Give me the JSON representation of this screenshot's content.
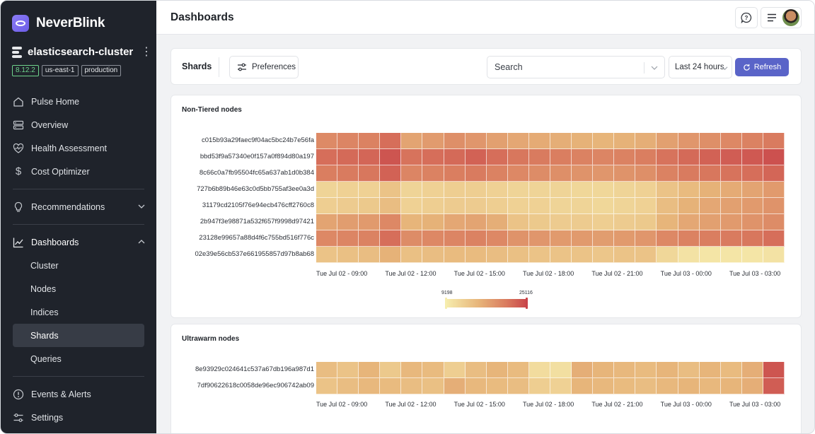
{
  "brand": {
    "name": "NeverBlink"
  },
  "cluster": {
    "name": "elasticsearch-cluster",
    "badges": [
      "8.12.2",
      "us-east-1",
      "production"
    ]
  },
  "nav": {
    "pulse_home": "Pulse Home",
    "overview": "Overview",
    "health_assessment": "Health Assessment",
    "cost_optimizer": "Cost Optimizer",
    "recommendations": "Recommendations",
    "dashboards": "Dashboards",
    "dashboards_sub": [
      "Cluster",
      "Nodes",
      "Indices",
      "Shards",
      "Queries"
    ],
    "active_sub": "Shards",
    "events_alerts": "Events & Alerts",
    "settings": "Settings"
  },
  "header": {
    "title": "Dashboards"
  },
  "toolbar": {
    "title": "Shards",
    "preferences_label": "Preferences",
    "search_value": "Search",
    "time_range": "Last 24 hours",
    "refresh_label": "Refresh"
  },
  "colors": {
    "accent": "#5a64c8",
    "sidebar_bg": "#1f232b",
    "heat_low": "#f6edae",
    "heat_high": "#c8444a"
  },
  "chart_data": [
    {
      "type": "heatmap",
      "title": "Non-Tiered nodes",
      "rows": [
        "c015b93a29faec9f04ac5bc24b7e56fa",
        "bbd53f9a57340e0f157a0f894d80a197",
        "8c66c0a7fb95504fc65a637ab1d0b384",
        "727b6b89b46e63c0d5bb755af3ee0a3d",
        "31179cd2105f76e94ecb476cff2760c8",
        "2b947f3e98871a532f657f9998d97421",
        "23128e99657a88d4f6c755bd516f776c",
        "02e39e56cb537e661955857d97b8ab68"
      ],
      "x_ticks": [
        "Tue Jul 02 - 09:00",
        "Tue Jul 02 - 12:00",
        "Tue Jul 02 - 15:00",
        "Tue Jul 02 - 18:00",
        "Tue Jul 02 - 21:00",
        "Tue Jul 03 - 00:00",
        "Tue Jul 03 - 03:00"
      ],
      "legend": {
        "min": "9198",
        "max": "25116"
      },
      "values": [
        [
          0.65,
          0.68,
          0.7,
          0.8,
          0.5,
          0.55,
          0.62,
          0.58,
          0.52,
          0.48,
          0.46,
          0.44,
          0.42,
          0.4,
          0.42,
          0.44,
          0.52,
          0.58,
          0.62,
          0.66,
          0.7,
          0.74
        ],
        [
          0.8,
          0.82,
          0.84,
          0.92,
          0.78,
          0.8,
          0.82,
          0.86,
          0.8,
          0.76,
          0.74,
          0.72,
          0.7,
          0.68,
          0.7,
          0.72,
          0.78,
          0.82,
          0.86,
          0.88,
          0.9,
          0.94
        ],
        [
          0.72,
          0.74,
          0.76,
          0.86,
          0.68,
          0.7,
          0.72,
          0.74,
          0.7,
          0.66,
          0.64,
          0.62,
          0.6,
          0.58,
          0.6,
          0.62,
          0.7,
          0.74,
          0.76,
          0.78,
          0.8,
          0.84
        ],
        [
          0.18,
          0.2,
          0.2,
          0.3,
          0.18,
          0.2,
          0.22,
          0.22,
          0.2,
          0.18,
          0.18,
          0.18,
          0.16,
          0.16,
          0.18,
          0.2,
          0.3,
          0.36,
          0.42,
          0.46,
          0.5,
          0.56
        ],
        [
          0.22,
          0.24,
          0.26,
          0.34,
          0.2,
          0.22,
          0.24,
          0.24,
          0.22,
          0.2,
          0.2,
          0.18,
          0.18,
          0.16,
          0.18,
          0.2,
          0.34,
          0.42,
          0.48,
          0.52,
          0.56,
          0.6
        ],
        [
          0.5,
          0.54,
          0.56,
          0.66,
          0.4,
          0.42,
          0.48,
          0.5,
          0.44,
          0.3,
          0.26,
          0.24,
          0.24,
          0.22,
          0.24,
          0.26,
          0.4,
          0.48,
          0.52,
          0.56,
          0.6,
          0.64
        ],
        [
          0.66,
          0.68,
          0.7,
          0.8,
          0.64,
          0.66,
          0.68,
          0.7,
          0.66,
          0.6,
          0.58,
          0.56,
          0.56,
          0.54,
          0.56,
          0.58,
          0.66,
          0.7,
          0.72,
          0.74,
          0.76,
          0.8
        ],
        [
          0.3,
          0.32,
          0.34,
          0.42,
          0.32,
          0.34,
          0.36,
          0.36,
          0.34,
          0.32,
          0.3,
          0.3,
          0.3,
          0.28,
          0.3,
          0.3,
          0.16,
          0.08,
          0.06,
          0.06,
          0.06,
          0.08
        ]
      ]
    },
    {
      "type": "heatmap",
      "title": "Ultrawarm nodes",
      "rows": [
        "8e93929c024641c537a67db196a987d1",
        "7df90622618c0058de96ec906742ab09"
      ],
      "x_ticks": [
        "Tue Jul 02 - 09:00",
        "Tue Jul 02 - 12:00",
        "Tue Jul 02 - 15:00",
        "Tue Jul 02 - 18:00",
        "Tue Jul 02 - 21:00",
        "Tue Jul 03 - 00:00",
        "Tue Jul 03 - 03:00"
      ],
      "values": [
        [
          0.34,
          0.3,
          0.4,
          0.26,
          0.38,
          0.36,
          0.22,
          0.34,
          0.4,
          0.36,
          0.12,
          0.1,
          0.44,
          0.4,
          0.38,
          0.36,
          0.4,
          0.34,
          0.4,
          0.36,
          0.44,
          0.92
        ],
        [
          0.3,
          0.34,
          0.38,
          0.36,
          0.34,
          0.32,
          0.44,
          0.38,
          0.36,
          0.34,
          0.22,
          0.2,
          0.4,
          0.38,
          0.36,
          0.34,
          0.38,
          0.4,
          0.38,
          0.4,
          0.44,
          0.88
        ]
      ]
    }
  ]
}
